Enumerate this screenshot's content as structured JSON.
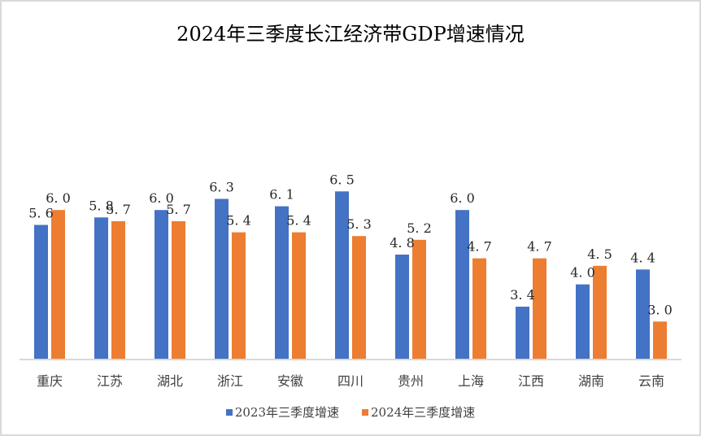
{
  "chart_data": {
    "type": "bar",
    "title": "2024年三季度长江经济带GDP增速情况",
    "xlabel": "",
    "ylabel": "",
    "ylim": [
      2,
      7.5
    ],
    "grid": false,
    "legend_position": "bottom",
    "categories": [
      "重庆",
      "江苏",
      "湖北",
      "浙江",
      "安徽",
      "四川",
      "贵州",
      "上海",
      "江西",
      "湖南",
      "云南"
    ],
    "series": [
      {
        "name": "2023年三季度增速",
        "color": "#4472c4",
        "values": [
          5.6,
          5.8,
          6.0,
          6.3,
          6.1,
          6.5,
          4.8,
          6.0,
          3.4,
          4.0,
          4.4
        ],
        "labels": [
          "5.6",
          "5.8",
          "6.0",
          "6.3",
          "6.1",
          "6.5",
          "4.8",
          "6.0",
          "3.4",
          "4.0",
          "4.4"
        ]
      },
      {
        "name": "2024年三季度增速",
        "color": "#ed7d31",
        "values": [
          6.0,
          5.7,
          5.7,
          5.4,
          5.4,
          5.3,
          5.2,
          4.7,
          4.7,
          4.5,
          3.0
        ],
        "labels": [
          "6.0",
          "5.7",
          "5.7",
          "5.4",
          "5.4",
          "5.3",
          "5.2",
          "4.7",
          "4.7",
          "4.5",
          "3.0"
        ]
      }
    ]
  }
}
